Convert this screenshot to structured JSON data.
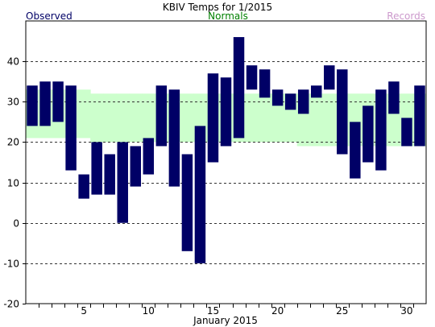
{
  "chart_data": {
    "type": "bar",
    "title": "KBIV Temps for 1/2015",
    "xlabel": "January 2015",
    "ylabel": "",
    "legend": [
      {
        "label": "Observed",
        "color": "#000066"
      },
      {
        "label": "Normals",
        "color": "#008000"
      },
      {
        "label": "Records",
        "color": "#cc99cc"
      }
    ],
    "ylim": [
      -20,
      50
    ],
    "yticks": [
      -20,
      -10,
      0,
      10,
      20,
      30,
      40
    ],
    "xlim": [
      0.5,
      31.5
    ],
    "xticks": [
      5,
      10,
      15,
      20,
      25,
      30
    ],
    "grid": "dashed horizontal",
    "colors": {
      "observed": "#000066",
      "normals": "#ccffcc"
    },
    "days": [
      1,
      2,
      3,
      4,
      5,
      6,
      7,
      8,
      9,
      10,
      11,
      12,
      13,
      14,
      15,
      16,
      17,
      18,
      19,
      20,
      21,
      22,
      23,
      24,
      25,
      26,
      27,
      28,
      29,
      30,
      31
    ],
    "series": [
      {
        "name": "Observed",
        "high": [
          34,
          35,
          35,
          34,
          12,
          20,
          17,
          20,
          19,
          21,
          34,
          33,
          17,
          24,
          37,
          36,
          46,
          39,
          38,
          33,
          32,
          33,
          34,
          39,
          38,
          25,
          29,
          33,
          35,
          26,
          34
        ],
        "low": [
          24,
          24,
          25,
          13,
          6,
          7,
          7,
          0,
          9,
          12,
          19,
          9,
          -7,
          -10,
          15,
          19,
          21,
          33,
          31,
          29,
          28,
          27,
          31,
          33,
          17,
          11,
          15,
          13,
          27,
          19,
          19
        ]
      },
      {
        "name": "Normals",
        "high": [
          33,
          33,
          33,
          33,
          33,
          32,
          32,
          32,
          32,
          32,
          32,
          32,
          32,
          32,
          32,
          32,
          32,
          32,
          32,
          32,
          32,
          32,
          32,
          32,
          32,
          32,
          32,
          32,
          32,
          32,
          32
        ],
        "low": [
          21,
          21,
          21,
          21,
          21,
          20,
          20,
          20,
          20,
          20,
          20,
          20,
          20,
          20,
          20,
          20,
          20,
          20,
          20,
          20,
          20,
          19,
          19,
          19,
          19,
          19,
          19,
          19,
          19,
          19,
          19
        ]
      }
    ]
  }
}
